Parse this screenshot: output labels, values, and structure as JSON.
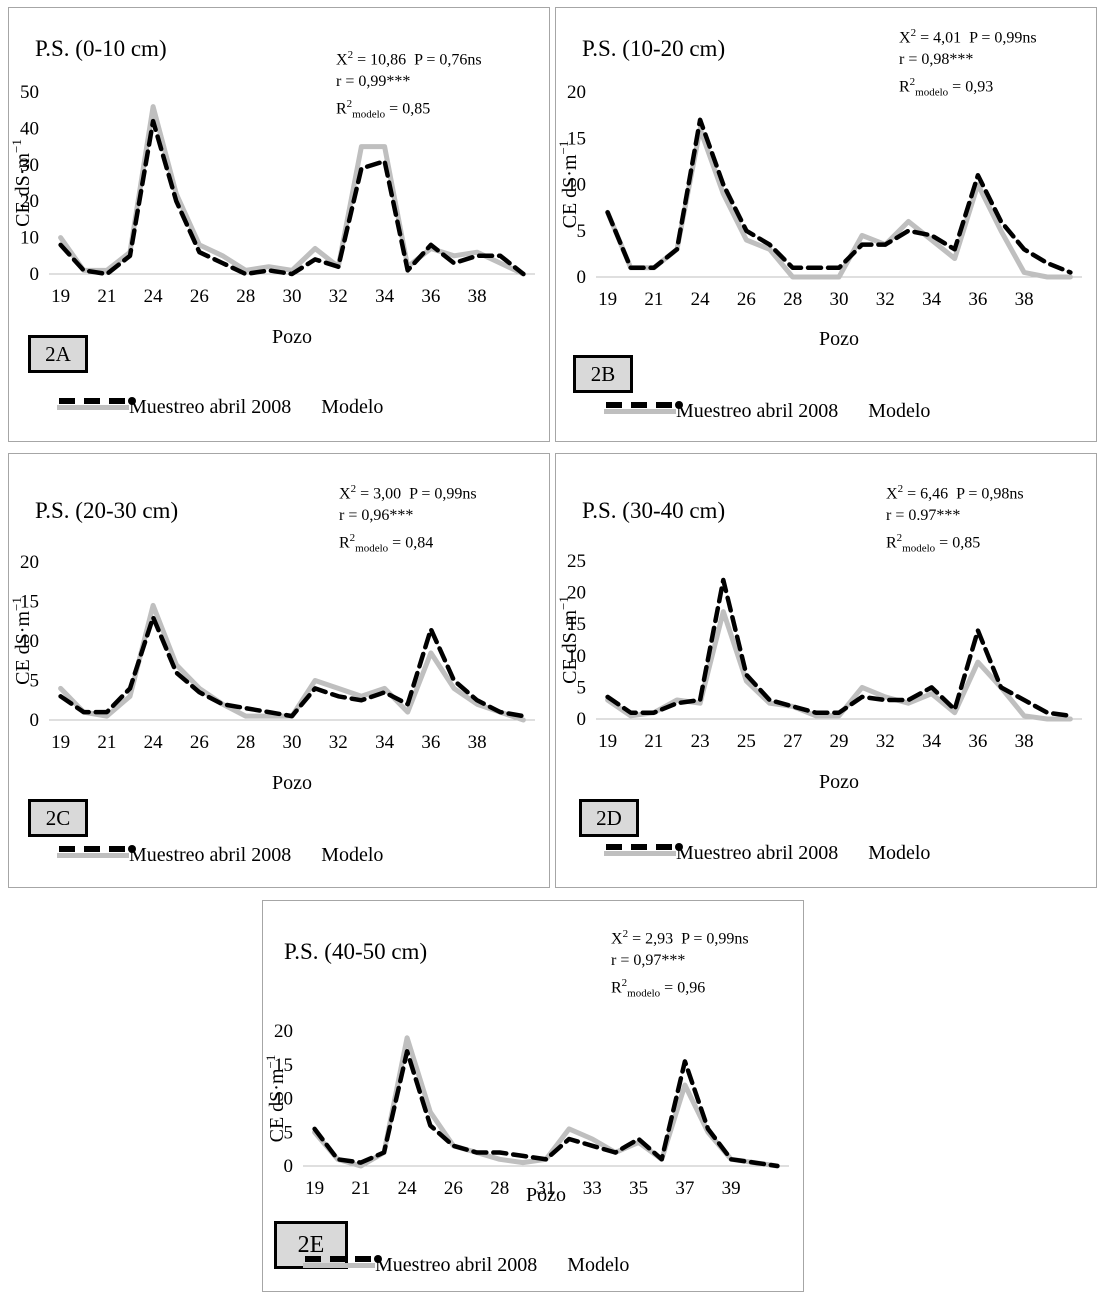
{
  "style": {
    "sample_color": "#bfbfbf",
    "model_color": "#000000",
    "border_color": "#a6a6a6",
    "badge_fill": "#d9d9d9"
  },
  "legend": {
    "sample": "Muestreo abril 2008",
    "model": "Modelo"
  },
  "chart_data": [
    {
      "type": "line",
      "badge": "2A",
      "title": "P.S. (0-10 cm)",
      "stats": {
        "x2_label": "X",
        "x2_value": "10,86",
        "p_text": "P = 0,76ns",
        "r_text": "r = 0,99***",
        "r2_label": "R",
        "r2_sub": "modelo",
        "r2_value": "= 0,85"
      },
      "xlabel": "Pozo",
      "ylabel": "CE dS·m",
      "ylabel_exp": "−1",
      "ylim": [
        0,
        50
      ],
      "yticks": [
        "0",
        "10",
        "20",
        "30",
        "40",
        "50"
      ],
      "xtick_labels": [
        "19",
        "21",
        "24",
        "26",
        "28",
        "30",
        "32",
        "34",
        "36",
        "38"
      ],
      "x": [
        1,
        2,
        3,
        4,
        5,
        6,
        7,
        8,
        9,
        10,
        11,
        12,
        13,
        14,
        15,
        16,
        17,
        18,
        19,
        20,
        21
      ],
      "series": [
        {
          "name": "Muestreo abril 2008",
          "values": [
            10,
            1,
            1,
            6,
            46,
            22,
            8,
            5,
            1,
            2,
            1,
            7,
            2,
            35,
            35,
            2,
            7,
            5,
            6,
            3,
            0
          ]
        },
        {
          "name": "Modelo",
          "values": [
            8,
            1,
            0,
            5,
            42,
            20,
            6,
            3,
            0,
            1,
            0,
            4,
            2,
            29,
            31,
            1,
            8,
            3,
            5,
            5,
            0
          ]
        }
      ]
    },
    {
      "type": "line",
      "badge": "2B",
      "title": "P.S. (10-20 cm)",
      "stats": {
        "x2_label": "X",
        "x2_value": "4,01",
        "p_text": "P = 0,99ns",
        "r_text": "r = 0,98***",
        "r2_label": "R",
        "r2_sub": "modelo",
        "r2_value": "= 0,93"
      },
      "xlabel": "Pozo",
      "ylabel": "CE dS·m",
      "ylabel_exp": "−1",
      "ylim": [
        0,
        20
      ],
      "yticks": [
        "0",
        "5",
        "10",
        "15",
        "20"
      ],
      "xtick_labels": [
        "19",
        "21",
        "24",
        "26",
        "28",
        "30",
        "32",
        "34",
        "36",
        "38"
      ],
      "x": [
        1,
        2,
        3,
        4,
        5,
        6,
        7,
        8,
        9,
        10,
        11,
        12,
        13,
        14,
        15,
        16,
        17,
        18,
        19,
        20,
        21
      ],
      "series": [
        {
          "name": "Muestreo abril 2008",
          "values": [
            7,
            1,
            1,
            3,
            16,
            9,
            4,
            3,
            0,
            0,
            0,
            4.5,
            3.5,
            6,
            4,
            2,
            10,
            5,
            0.5,
            0,
            0
          ]
        },
        {
          "name": "Modelo",
          "values": [
            7,
            1,
            1,
            3,
            17,
            10,
            5,
            3.5,
            1,
            1,
            1,
            3.5,
            3.5,
            5,
            4.5,
            3,
            11,
            6,
            3,
            1.5,
            0.5
          ]
        }
      ]
    },
    {
      "type": "line",
      "badge": "2C",
      "title": "P.S. (20-30 cm)",
      "stats": {
        "x2_label": "X",
        "x2_value": "3,00",
        "p_text": "P = 0,99ns",
        "r_text": "r = 0,96***",
        "r2_label": "R",
        "r2_sub": "modelo",
        "r2_value": "= 0,84"
      },
      "xlabel": "Pozo",
      "ylabel": "CE dS·m",
      "ylabel_exp": "−1",
      "ylim": [
        0,
        20
      ],
      "yticks": [
        "0",
        "5",
        "10",
        "15",
        "20"
      ],
      "xtick_labels": [
        "19",
        "21",
        "24",
        "26",
        "28",
        "30",
        "32",
        "34",
        "36",
        "38"
      ],
      "x": [
        1,
        2,
        3,
        4,
        5,
        6,
        7,
        8,
        9,
        10,
        11,
        12,
        13,
        14,
        15,
        16,
        17,
        18,
        19,
        20,
        21
      ],
      "series": [
        {
          "name": "Muestreo abril 2008",
          "values": [
            4,
            1,
            0.5,
            3,
            14.5,
            7,
            4,
            2,
            0.5,
            0.5,
            0.5,
            5,
            4,
            3,
            4,
            1,
            8.5,
            4,
            2,
            1,
            0
          ]
        },
        {
          "name": "Modelo",
          "values": [
            3,
            1,
            1,
            4,
            13,
            6,
            3.5,
            2,
            1.5,
            1,
            0.5,
            4,
            3,
            2.5,
            3.5,
            2,
            11.5,
            5,
            2.5,
            1,
            0.5
          ]
        }
      ]
    },
    {
      "type": "line",
      "badge": "2D",
      "title": "P.S. (30-40 cm)",
      "stats": {
        "x2_label": "X",
        "x2_value": "6,46",
        "p_text": "P = 0,98ns",
        "r_text": "r = 0.97***",
        "r2_label": "R",
        "r2_sub": "modelo",
        "r2_value": "= 0,85"
      },
      "xlabel": "Pozo",
      "ylabel": "CE dS·m",
      "ylabel_exp": "−1",
      "ylim": [
        0,
        25
      ],
      "yticks": [
        "0",
        "5",
        "10",
        "15",
        "20",
        "25"
      ],
      "xtick_labels": [
        "19",
        "21",
        "23",
        "25",
        "27",
        "29",
        "32",
        "34",
        "36",
        "38"
      ],
      "x": [
        1,
        2,
        3,
        4,
        5,
        6,
        7,
        8,
        9,
        10,
        11,
        12,
        13,
        14,
        15,
        16,
        17,
        18,
        19,
        20,
        21
      ],
      "series": [
        {
          "name": "Muestreo abril 2008",
          "values": [
            3,
            0.5,
            1,
            3,
            2.5,
            17,
            6,
            2.5,
            2,
            0.5,
            0.5,
            5,
            3.5,
            2.5,
            4,
            1,
            9,
            5,
            0.5,
            0,
            0
          ]
        },
        {
          "name": "Modelo",
          "values": [
            3.5,
            1,
            1,
            2.5,
            3,
            22,
            7,
            3,
            2,
            1,
            1,
            3.5,
            3,
            3,
            5,
            1.5,
            14,
            5,
            3,
            1,
            0.5
          ]
        }
      ]
    },
    {
      "type": "line",
      "badge": "2E",
      "title": "P.S. (40-50 cm)",
      "stats": {
        "x2_label": "X",
        "x2_value": "2,93",
        "p_text": "P = 0,99ns",
        "r_text": "r = 0,97***",
        "r2_label": "R",
        "r2_sub": "modelo",
        "r2_value": "= 0,96"
      },
      "xlabel": "Pozo",
      "ylabel": "CE dS·m",
      "ylabel_exp": "−1",
      "ylim": [
        0,
        20
      ],
      "yticks": [
        "0",
        "5",
        "10",
        "15",
        "20"
      ],
      "xtick_labels": [
        "19",
        "21",
        "24",
        "26",
        "28",
        "31",
        "33",
        "35",
        "37",
        "39"
      ],
      "x": [
        1,
        2,
        3,
        4,
        5,
        6,
        7,
        8,
        9,
        10,
        11,
        12,
        13,
        14,
        15,
        16,
        17,
        18,
        19,
        20,
        21
      ],
      "series": [
        {
          "name": "Muestreo abril 2008",
          "values": [
            5,
            1,
            0,
            2,
            19,
            8,
            3,
            2,
            1,
            0.5,
            1,
            5.5,
            4,
            2,
            3.5,
            1,
            12,
            5,
            1,
            0.5,
            0
          ]
        },
        {
          "name": "Modelo",
          "values": [
            5.5,
            1,
            0.5,
            2,
            17,
            6,
            3,
            2,
            2,
            1.5,
            1,
            4,
            3,
            2,
            4,
            1,
            15.5,
            5.5,
            1,
            0.5,
            0
          ]
        }
      ]
    }
  ]
}
